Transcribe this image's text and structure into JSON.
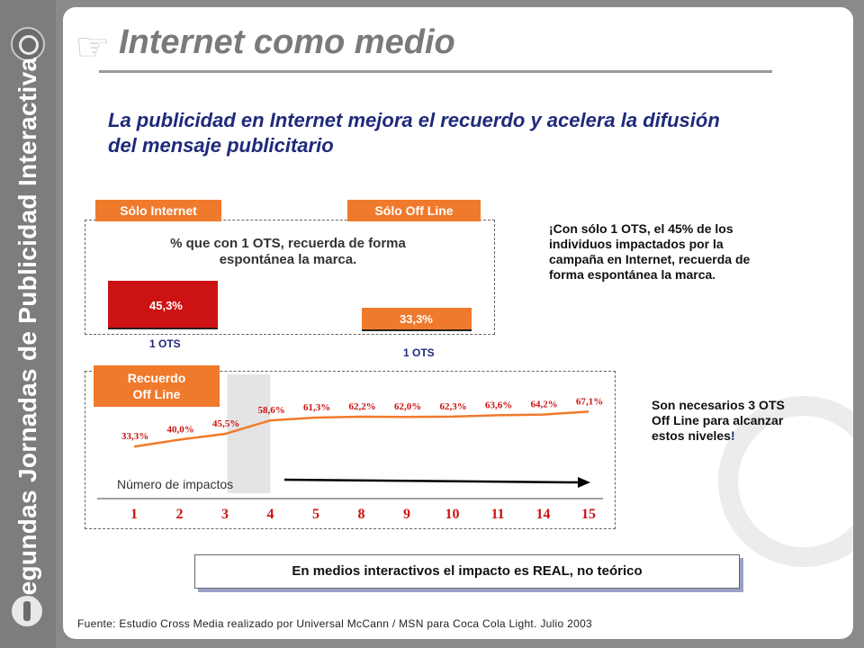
{
  "sidebar": {
    "text": "Segundas Jornadas de Publicidad Interactiva"
  },
  "header": {
    "title": "Internet como medio"
  },
  "subtitle": "La publicidad en Internet mejora el recuerdo y acelera la difusión del mensaje publicitario",
  "comparison": {
    "tag_internet": "Sólo Internet",
    "tag_offline": "Sólo Off Line",
    "label_line1": "% que con 1 OTS, recuerda de forma",
    "label_line2": "espontánea la marca.",
    "bars": [
      {
        "label": "45,3%",
        "value": 45.3,
        "ots": "1 OTS",
        "color": "#cc1212"
      },
      {
        "label": "33,3%",
        "value": 33.3,
        "ots": "1 OTS",
        "color": "#f07a2c"
      }
    ]
  },
  "note1": {
    "bold_intro": "¡Con sólo 1 OTS",
    "rest": ", el 45% de los individuos impactados por la campaña en Internet, recuerda de forma espontánea la marca",
    "end": "."
  },
  "chart_data": {
    "type": "line",
    "title": "",
    "xlabel": "Número de impactos",
    "ylabel": "",
    "x": [
      "1",
      "2",
      "3",
      "4",
      "5",
      "8",
      "9",
      "10",
      "11",
      "14",
      "15"
    ],
    "series": [
      {
        "name": "Recuerdo Off Line",
        "values": [
          33.3,
          40.0,
          45.5,
          58.6,
          61.3,
          62.2,
          62.0,
          62.3,
          63.6,
          64.2,
          67.1
        ],
        "labels": [
          "33,3%",
          "40,0%",
          "45,5%",
          "58,6%",
          "61,3%",
          "62,2%",
          "62,0%",
          "62,3%",
          "63,6%",
          "64,2%",
          "67,1%"
        ]
      }
    ],
    "highlight_category": "4",
    "grid": false,
    "line_color": "#f07a2c",
    "label_color": "#cc1212",
    "tick_color": "#cc1212"
  },
  "recuerdo_tag": {
    "line1": "Recuerdo",
    "line2": "Off Line"
  },
  "note2": {
    "text": "Son necesarios 3 OTS Off Line para alcanzar estos niveles",
    "end": "!"
  },
  "callout": "En medios interactivos el impacto es REAL, no teórico",
  "source": "Fuente: Estudio Cross Media realizado por Universal McCann / MSN para Coca Cola Light. Julio 2003"
}
